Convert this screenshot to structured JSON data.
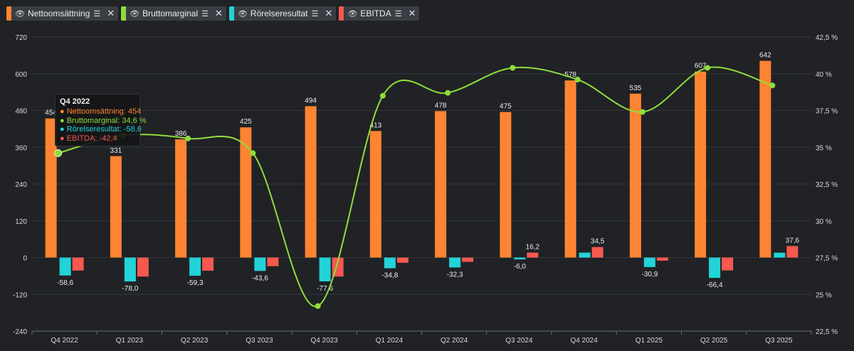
{
  "legend": [
    {
      "label": "Nettoomsättning",
      "color": "#ff8431"
    },
    {
      "label": "Bruttomarginal",
      "color": "#8ede3a"
    },
    {
      "label": "Rörelseresultat",
      "color": "#22d3d8"
    },
    {
      "label": "EBITDA",
      "color": "#f6584f"
    }
  ],
  "tooltip": {
    "title": "Q4 2022",
    "rows": [
      {
        "text": "Nettoomsättning: 454",
        "color": "#ff8431"
      },
      {
        "text": "Bruttomarginal: 34,6 %",
        "color": "#8ede3a"
      },
      {
        "text": "Rörelseresultat: -58,6",
        "color": "#22d3d8"
      },
      {
        "text": "EBITDA: -42,4",
        "color": "#f6584f"
      }
    ]
  },
  "chart_data": {
    "type": "bar",
    "categories": [
      "Q4 2022",
      "Q1 2023",
      "Q2 2023",
      "Q3 2023",
      "Q4 2023",
      "Q1 2024",
      "Q2 2024",
      "Q3 2024",
      "Q4 2024",
      "Q1 2025",
      "Q2 2025",
      "Q3 2025"
    ],
    "series": [
      {
        "name": "Nettoomsättning",
        "type": "bar",
        "axis": "left",
        "color": "#ff8431",
        "values": [
          454,
          331,
          386,
          425,
          494,
          413,
          478,
          475,
          578,
          535,
          607,
          642
        ],
        "labels": [
          "454",
          "331",
          "386",
          "425",
          "494",
          "413",
          "478",
          "475",
          "578",
          "535",
          "607",
          "642"
        ]
      },
      {
        "name": "Rörelseresultat",
        "type": "bar",
        "axis": "left",
        "color": "#22d3d8",
        "values": [
          -58.6,
          -78.0,
          -59.3,
          -43.6,
          -77.6,
          -34.8,
          -32.3,
          -6.0,
          16.2,
          -30.9,
          -66.4,
          16.0
        ],
        "labels": [
          "-58,6",
          "-78,0",
          "-59,3",
          "-43,6",
          "-77,6",
          "-34,8",
          "-32,3",
          "-6,0",
          "",
          "-30,9",
          "-66,4",
          ""
        ]
      },
      {
        "name": "EBITDA",
        "type": "bar",
        "axis": "left",
        "color": "#f6584f",
        "values": [
          -42.4,
          -62.0,
          -43.0,
          -28.0,
          -62.0,
          -17.0,
          -14.0,
          16.2,
          34.5,
          -10.0,
          -42.0,
          37.6
        ],
        "labels": [
          "",
          "",
          "",
          "",
          "",
          "",
          "",
          "16,2",
          "34,5",
          "",
          "",
          "37,6"
        ]
      },
      {
        "name": "Bruttomarginal",
        "type": "line",
        "axis": "right",
        "color": "#8ede3a",
        "values": [
          34.6,
          35.8,
          35.6,
          34.6,
          24.2,
          38.5,
          38.7,
          40.4,
          39.6,
          37.4,
          40.4,
          39.2
        ]
      }
    ],
    "y_left": {
      "min": -240,
      "max": 720,
      "ticks": [
        "-240",
        "-120",
        "0",
        "120",
        "240",
        "360",
        "480",
        "600",
        "720"
      ]
    },
    "y_right": {
      "min": 22.5,
      "max": 42.5,
      "ticks": [
        "22,5 %",
        "25 %",
        "27,5 %",
        "30 %",
        "32,5 %",
        "35 %",
        "37,5 %",
        "40 %",
        "42,5 %"
      ]
    },
    "grid": true,
    "legend_position": "top-left"
  }
}
